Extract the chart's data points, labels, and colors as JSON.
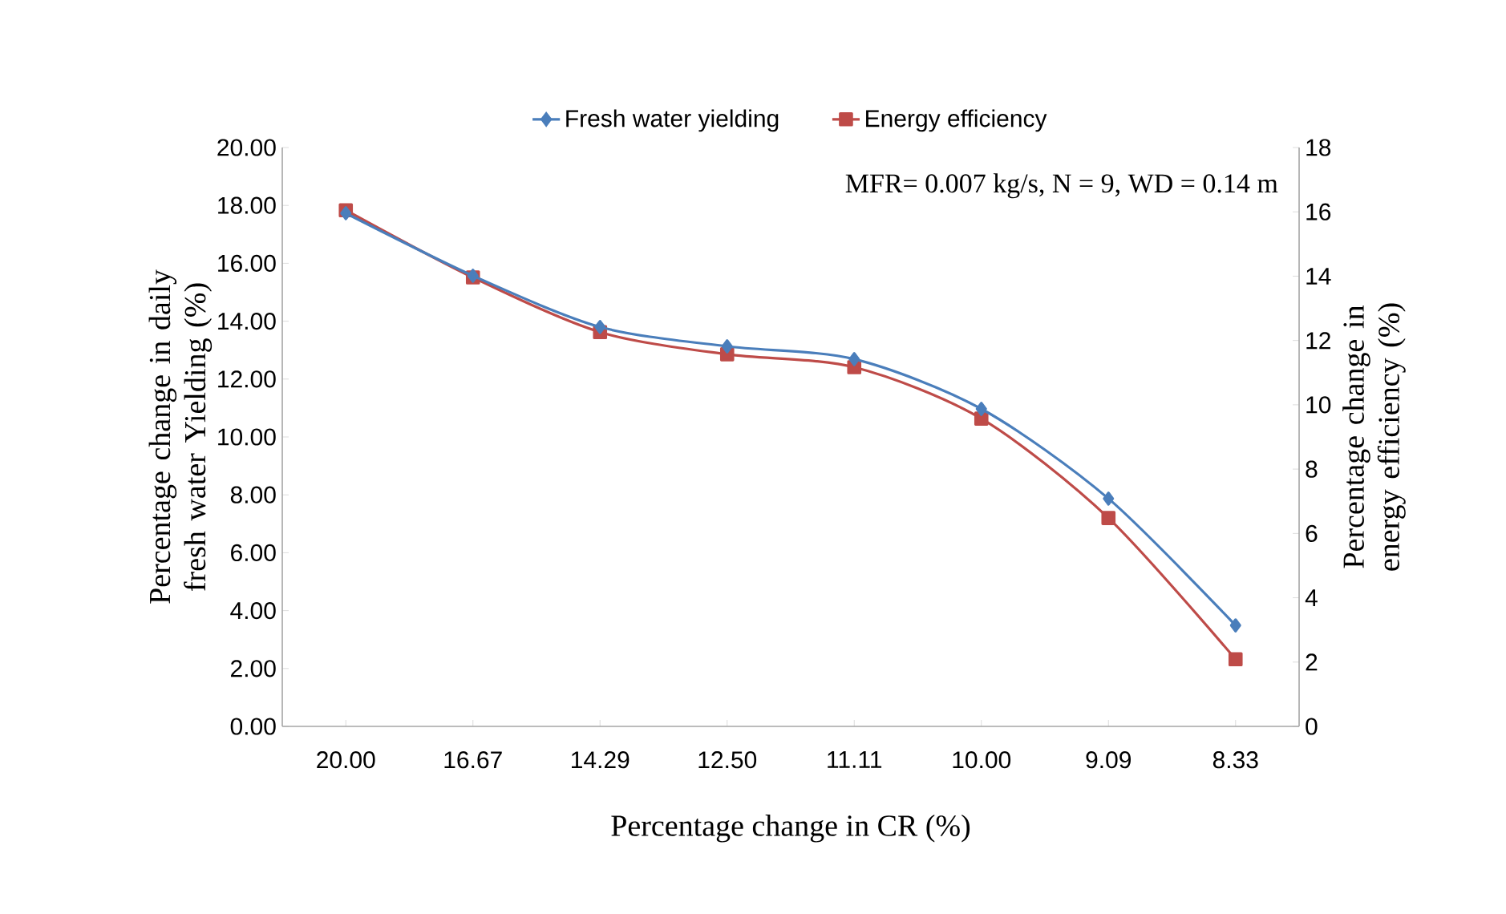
{
  "chart_data": {
    "type": "line",
    "xlabel": "Percentage change in CR (%)",
    "ylabel": "Percentage change in daily  fresh water Yielding  (%)",
    "y2label": "Percentage change in energy efficiency  (%)",
    "annotations": [
      "MFR= 0.007  kg/s, N = 9, WD = 0.14 m"
    ],
    "categories": [
      "20.00",
      "16.67",
      "14.29",
      "12.50",
      "11.11",
      "10.00",
      "9.09",
      "8.33"
    ],
    "series": [
      {
        "name": "Fresh water yielding",
        "color": "#4a7ebb",
        "marker": "diamond",
        "axis": "y",
        "values": [
          17.73,
          15.57,
          13.8,
          13.13,
          12.69,
          10.97,
          7.87,
          3.49
        ]
      },
      {
        "name": "Energy efficiency",
        "color": "#be4b48",
        "marker": "square",
        "axis": "y2",
        "values": [
          16.05,
          13.96,
          12.26,
          11.57,
          11.17,
          9.57,
          6.48,
          2.09
        ]
      }
    ],
    "ylim": [
      0,
      20
    ],
    "yticks": [
      {
        "value": 0,
        "label": "0.00"
      },
      {
        "value": 2,
        "label": "2.00"
      },
      {
        "value": 4,
        "label": "4.00"
      },
      {
        "value": 6,
        "label": "6.00"
      },
      {
        "value": 8,
        "label": "8.00"
      },
      {
        "value": 10,
        "label": "10.00"
      },
      {
        "value": 12,
        "label": "12.00"
      },
      {
        "value": 14,
        "label": "14.00"
      },
      {
        "value": 16,
        "label": "16.00"
      },
      {
        "value": 18,
        "label": "18.00"
      },
      {
        "value": 20,
        "label": "20.00"
      }
    ],
    "y2lim": [
      0,
      18
    ],
    "y2ticks": [
      0,
      2,
      4,
      6,
      8,
      10,
      12,
      14,
      16,
      18
    ],
    "legend": "top",
    "grid": false
  }
}
